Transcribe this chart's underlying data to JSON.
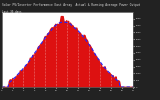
{
  "title": "Solar PV/Inverter Performance East Array  Actual & Running Average Power Output",
  "subtitle": "Last 30 days",
  "bg_color": "#222222",
  "plot_bg_color": "#ffffff",
  "grid_color": "#ffffff",
  "area_color": "#dd1111",
  "line_color": "#2222ff",
  "title_color": "#dddddd",
  "ylim": [
    0,
    5500
  ],
  "xlim": [
    0,
    144
  ],
  "num_points": 145
}
